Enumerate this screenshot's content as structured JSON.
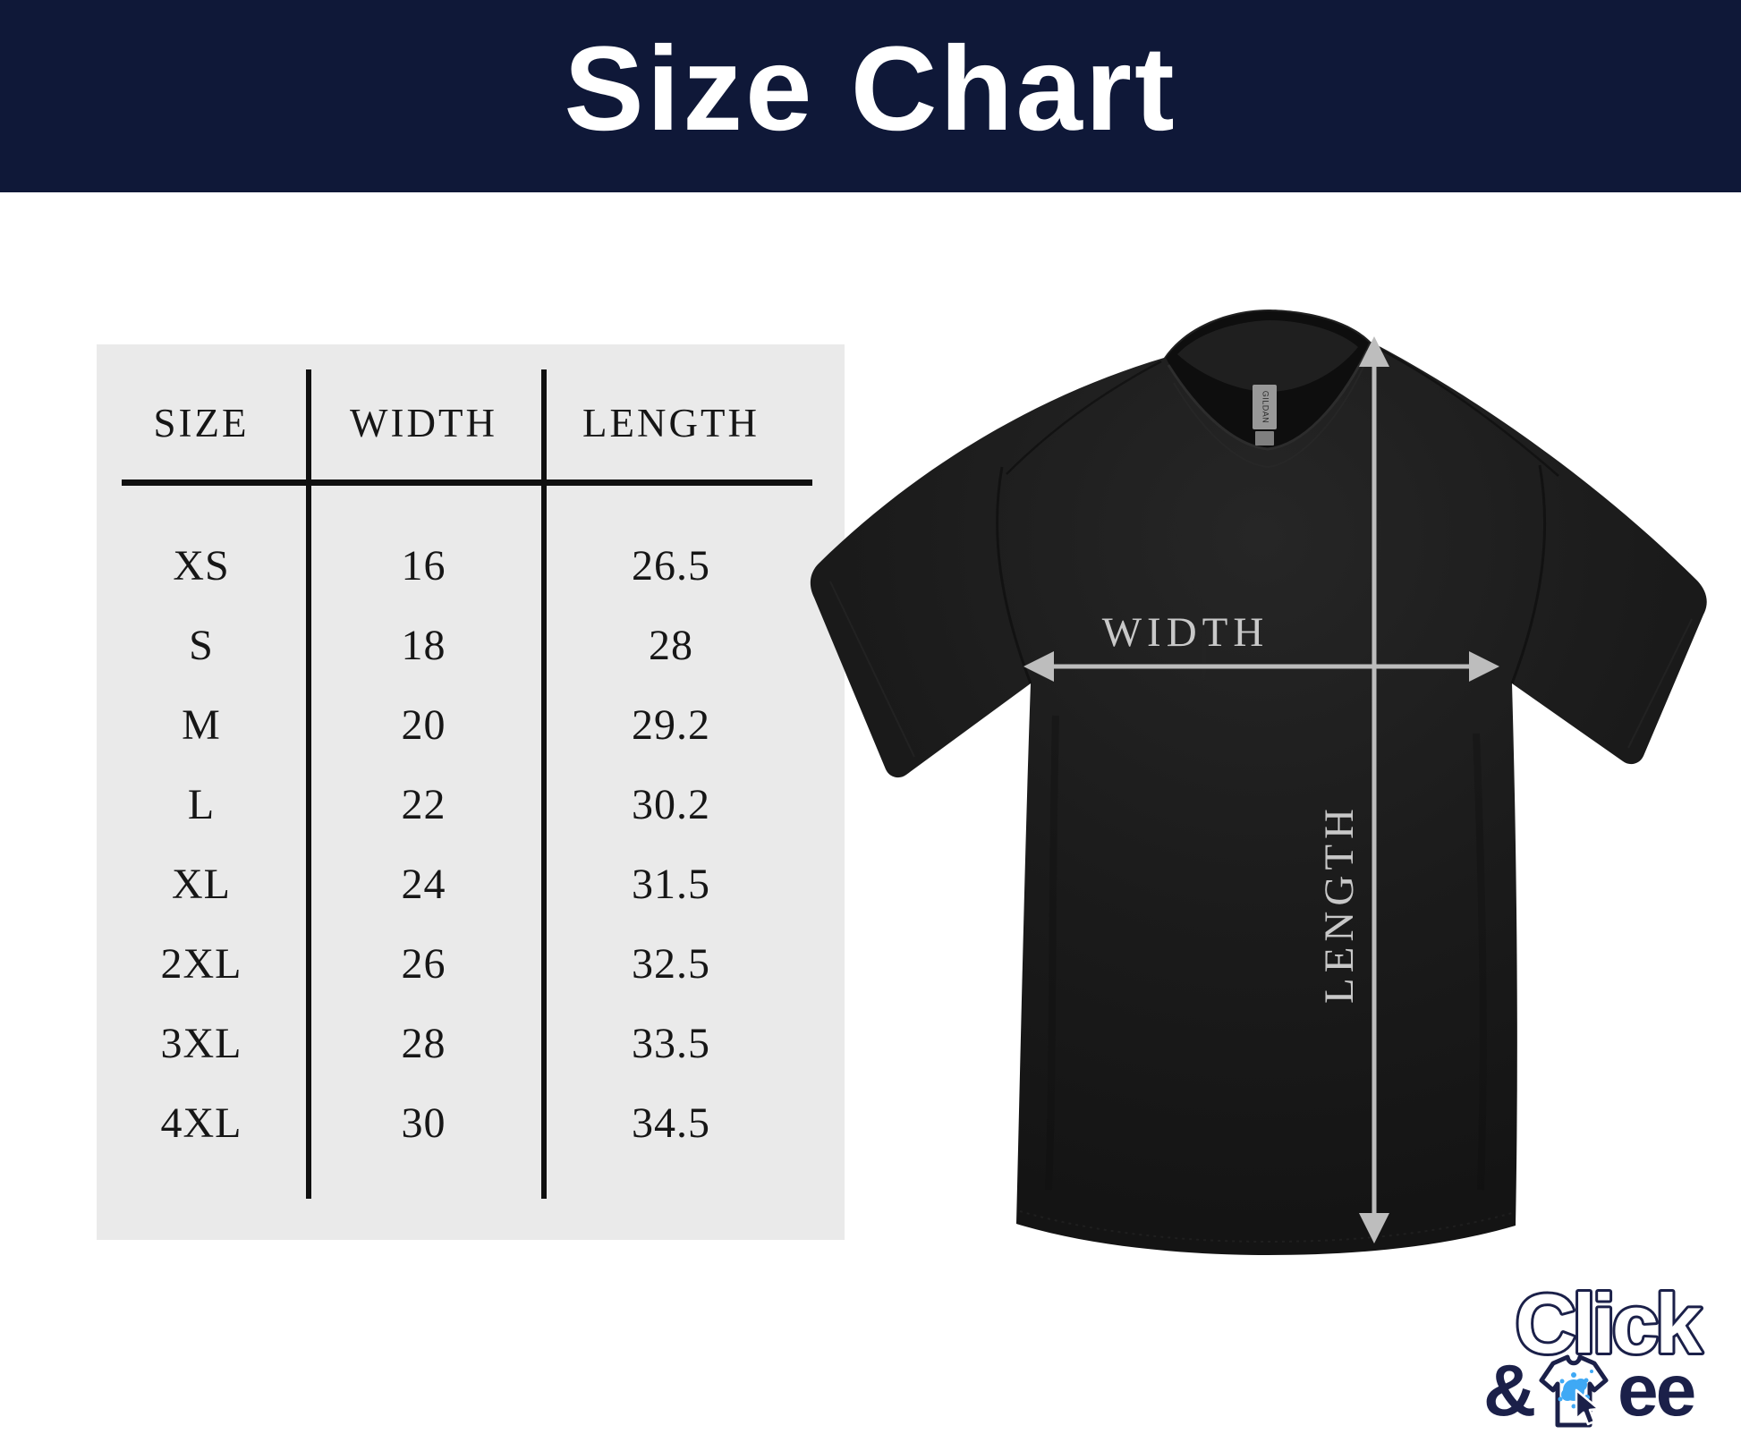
{
  "header": {
    "title": "Size Chart"
  },
  "table": {
    "columns": [
      "SIZE",
      "WIDTH",
      "LENGTH"
    ],
    "rows": [
      [
        "XS",
        "16",
        "26.5"
      ],
      [
        "S",
        "18",
        "28"
      ],
      [
        "M",
        "20",
        "29.2"
      ],
      [
        "L",
        "22",
        "30.2"
      ],
      [
        "XL",
        "24",
        "31.5"
      ],
      [
        "2XL",
        "26",
        "32.5"
      ],
      [
        "3XL",
        "28",
        "33.5"
      ],
      [
        "4XL",
        "30",
        "34.5"
      ]
    ]
  },
  "shirt": {
    "width_label": "WIDTH",
    "length_label": "LENGTH",
    "tag_label": "GILDAN"
  },
  "logo": {
    "word1": "Click",
    "amp": "&",
    "word2_tail": "ee"
  },
  "colors": {
    "header_bg": "#0f1838",
    "table_bg": "#eaeaea",
    "table_text": "#161616",
    "shirt_black": "#1c1c1c",
    "arrow_gray": "#bdbdbd",
    "measure_label_gray": "#c8c8c8",
    "logo_navy": "#1b2049",
    "splat_blue": "#3fa9f5"
  },
  "chart_data": {
    "type": "table",
    "title": "Size Chart",
    "columns": [
      "SIZE",
      "WIDTH",
      "LENGTH"
    ],
    "rows": [
      [
        "XS",
        16,
        26.5
      ],
      [
        "S",
        18,
        28
      ],
      [
        "M",
        20,
        29.2
      ],
      [
        "L",
        22,
        30.2
      ],
      [
        "XL",
        24,
        31.5
      ],
      [
        "2XL",
        26,
        32.5
      ],
      [
        "3XL",
        28,
        33.5
      ],
      [
        "4XL",
        30,
        34.5
      ]
    ]
  }
}
